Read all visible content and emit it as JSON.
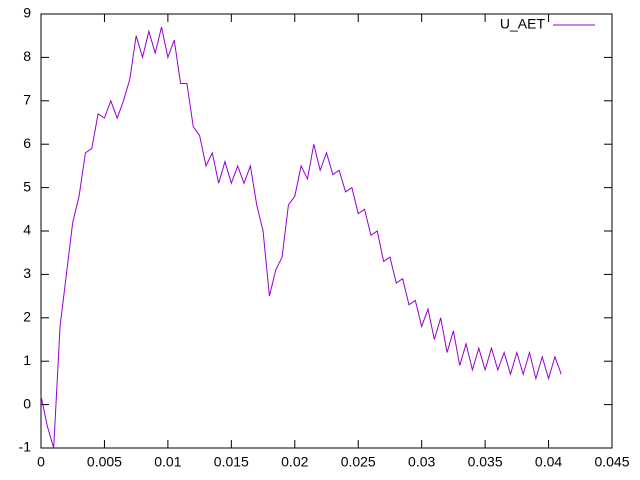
{
  "chart_data": {
    "type": "line",
    "legend": "top-right",
    "grid": false,
    "xlim": [
      0,
      0.045
    ],
    "xticks": [
      0,
      0.005,
      0.01,
      0.015,
      0.02,
      0.025,
      0.03,
      0.035,
      0.04,
      0.045
    ],
    "ylim": [
      -1,
      9
    ],
    "yticks": [
      -1,
      0,
      1,
      2,
      3,
      4,
      5,
      6,
      7,
      8,
      9
    ],
    "x": [
      0,
      0.0005,
      0.001,
      0.0015,
      0.002,
      0.0025,
      0.003,
      0.0035,
      0.004,
      0.0045,
      0.005,
      0.0055,
      0.006,
      0.0065,
      0.007,
      0.0075,
      0.008,
      0.0085,
      0.009,
      0.0095,
      0.01,
      0.0105,
      0.011,
      0.0115,
      0.012,
      0.0125,
      0.013,
      0.0135,
      0.014,
      0.0145,
      0.015,
      0.0155,
      0.016,
      0.0165,
      0.017,
      0.0175,
      0.018,
      0.0185,
      0.019,
      0.0195,
      0.02,
      0.0205,
      0.021,
      0.0215,
      0.022,
      0.0225,
      0.023,
      0.0235,
      0.024,
      0.0245,
      0.025,
      0.0255,
      0.026,
      0.0265,
      0.027,
      0.0275,
      0.028,
      0.0285,
      0.029,
      0.0295,
      0.03,
      0.0305,
      0.031,
      0.0315,
      0.032,
      0.0325,
      0.033,
      0.0335,
      0.034,
      0.0345,
      0.035,
      0.0355,
      0.036,
      0.0365,
      0.037,
      0.0375,
      0.038,
      0.0385,
      0.039,
      0.0395,
      0.04,
      0.0405,
      0.041
    ],
    "series": [
      {
        "name": "U_AET",
        "color": "#9400d3",
        "values": [
          0.2,
          -0.5,
          -1.0,
          1.8,
          3.0,
          4.2,
          4.8,
          5.8,
          5.9,
          6.7,
          6.6,
          7.0,
          6.6,
          7.0,
          7.5,
          8.5,
          8.0,
          8.6,
          8.1,
          8.7,
          8.0,
          8.4,
          7.4,
          7.4,
          6.4,
          6.2,
          5.5,
          5.8,
          5.1,
          5.6,
          5.1,
          5.5,
          5.1,
          5.5,
          4.6,
          4.0,
          2.5,
          3.1,
          3.4,
          4.6,
          4.8,
          5.5,
          5.2,
          6.0,
          5.4,
          5.8,
          5.3,
          5.4,
          4.9,
          5.0,
          4.4,
          4.5,
          3.9,
          4.0,
          3.3,
          3.4,
          2.8,
          2.9,
          2.3,
          2.4,
          1.8,
          2.2,
          1.5,
          2.0,
          1.2,
          1.7,
          0.9,
          1.4,
          0.8,
          1.3,
          0.8,
          1.3,
          0.8,
          1.2,
          0.7,
          1.2,
          0.7,
          1.2,
          0.6,
          1.1,
          0.6,
          1.1,
          0.7
        ]
      }
    ]
  }
}
